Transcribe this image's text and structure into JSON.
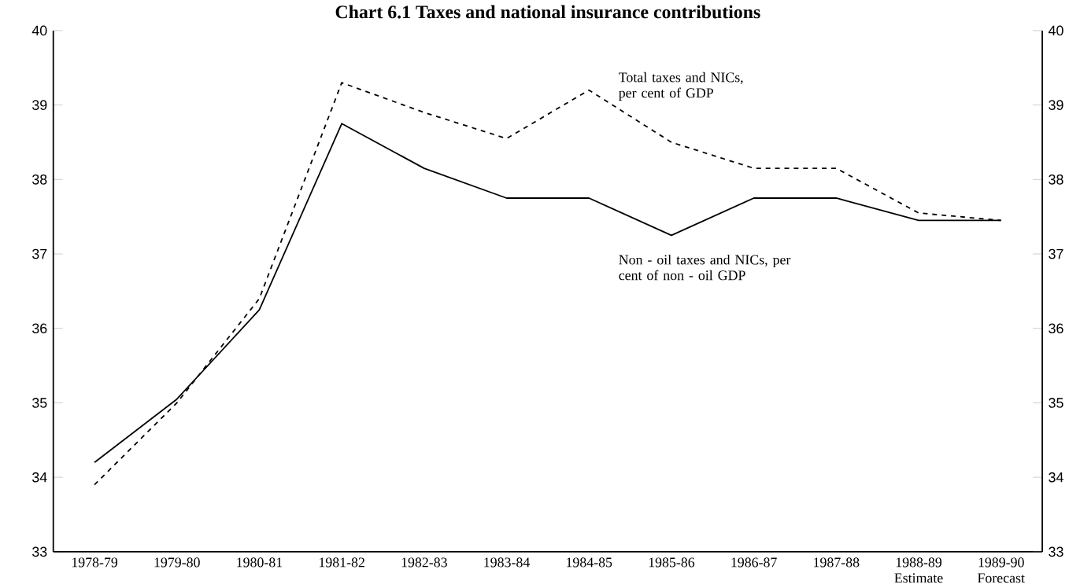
{
  "chart_data": {
    "type": "line",
    "title": "Chart 6.1    Taxes and national insurance contributions",
    "categories": [
      "1978-79",
      "1979-80",
      "1980-81",
      "1981-82",
      "1982-83",
      "1983-84",
      "1984-85",
      "1985-86",
      "1986-87",
      "1987-88",
      "1988-89 Estimate",
      "1989-90 Forecast"
    ],
    "series": [
      {
        "name": "Total taxes and NICs, per cent of GDP",
        "color": "#000000",
        "line_style": "dashed",
        "values": [
          33.9,
          35.0,
          36.4,
          39.3,
          38.9,
          38.55,
          39.2,
          38.5,
          38.15,
          38.15,
          37.55,
          37.45
        ]
      },
      {
        "name": "Non - oil taxes and NICs, per cent of non - oil GDP",
        "color": "#000000",
        "line_style": "solid",
        "values": [
          34.2,
          35.05,
          36.25,
          38.75,
          38.15,
          37.75,
          37.75,
          37.25,
          37.75,
          37.75,
          37.45,
          37.45
        ]
      }
    ],
    "ylim": [
      33,
      40
    ],
    "yticks": [
      33,
      34,
      35,
      36,
      37,
      38,
      39,
      40
    ],
    "y2lim": [
      33,
      40
    ],
    "y2ticks": [
      33,
      34,
      35,
      36,
      37,
      38,
      39,
      40
    ],
    "grid": false,
    "legend": false,
    "marker": "none"
  }
}
